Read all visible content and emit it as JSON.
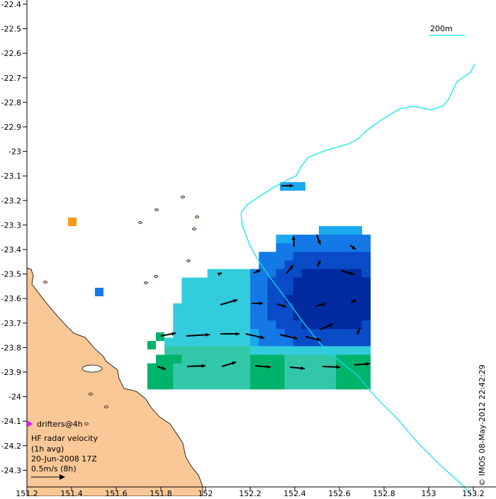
{
  "map": {
    "lon_ticks": [
      "151.2",
      "151.4",
      "151.6",
      "151.8",
      "152",
      "152.2",
      "152.4",
      "152.6",
      "152.8",
      "153",
      "153.2"
    ],
    "lat_ticks": [
      "-22.4",
      "-22.5",
      "-22.6",
      "-22.7",
      "-22.8",
      "-22.9",
      "-23",
      "-23.1",
      "-23.2",
      "-23.3",
      "-23.4",
      "-23.5",
      "-23.6",
      "-23.7",
      "-23.8",
      "-23.9",
      "-24",
      "-24.1",
      "-24.2",
      "-24.3"
    ],
    "scale_label": "200m",
    "credit": "© IMOS 08-May-2012 22:42:29"
  },
  "legend": {
    "drifters": "drifters@4h",
    "title_line1": "HF radar velocity",
    "title_line2": "(1h avg)",
    "date": "20-Jun-2008 17Z",
    "vector_scale": "0.5m/s (8h)"
  },
  "colors": {
    "land": "#f9c896",
    "isobath": "#00e5ee",
    "drifter": "#ff00ff",
    "speed_scale": [
      "#00b36b",
      "#33c7aa",
      "#33ccdd",
      "#1aa8ee",
      "#1478e6",
      "#0a4cc8",
      "#002aa0"
    ]
  }
}
